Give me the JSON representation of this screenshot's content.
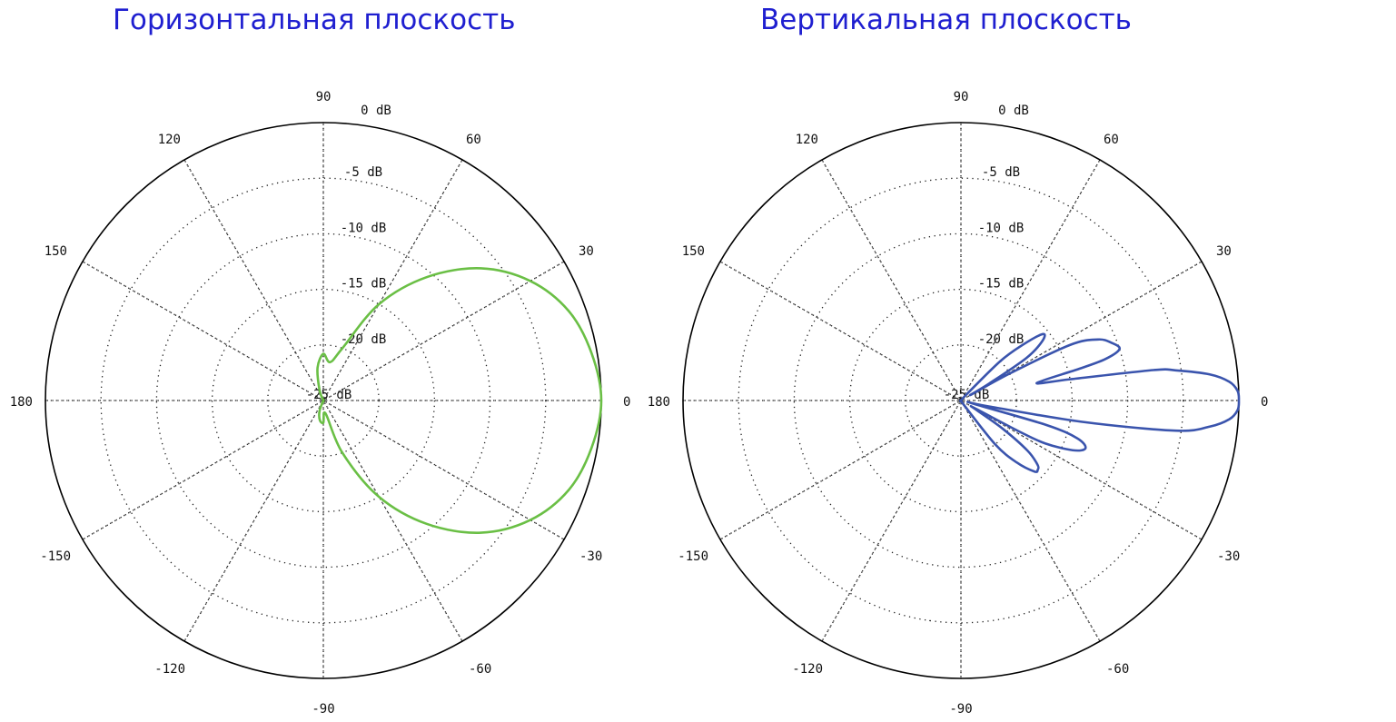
{
  "chart_data": [
    {
      "type": "polar-line",
      "title": "Горизонтальная плоскость",
      "angular_ticks": [
        "0",
        "30",
        "60",
        "90",
        "120",
        "150",
        "180",
        "-150",
        "-120",
        "-90",
        "-60",
        "-30"
      ],
      "radial_labels": [
        "0 dB",
        "-5 dB",
        "-10 dB",
        "-15 dB",
        "-20 dB",
        "-25 dB"
      ],
      "radial_range_db": [
        -25,
        0
      ],
      "grid": true,
      "series": [
        {
          "color": "#6abf45",
          "angles_deg": [
            0,
            10,
            20,
            30,
            40,
            50,
            60,
            70,
            80,
            90,
            100,
            110,
            120,
            130,
            140,
            150,
            160,
            170,
            180,
            -170,
            -160,
            -150,
            -140,
            -130,
            -120,
            -110,
            -100,
            -90,
            -80,
            -70,
            -60,
            -50,
            -40,
            -30,
            -20,
            -10
          ],
          "values_db": [
            0,
            -0.5,
            -1.5,
            -3.5,
            -6.5,
            -10.5,
            -15,
            -20,
            -21.5,
            -20.8,
            -22,
            -24,
            -25,
            -25,
            -25,
            -25,
            -25,
            -25,
            -25,
            -25,
            -25,
            -25,
            -25,
            -25,
            -25,
            -24,
            -23.2,
            -23,
            -23.8,
            -20,
            -15,
            -10.5,
            -6.5,
            -3.5,
            -1.5,
            -0.5
          ]
        }
      ]
    },
    {
      "type": "polar-line",
      "title": "Вертикальная плоскость",
      "angular_ticks": [
        "0",
        "30",
        "60",
        "90",
        "120",
        "150",
        "180",
        "-150",
        "-120",
        "-90",
        "-60",
        "-30"
      ],
      "radial_labels": [
        "0 dB",
        "-5 dB",
        "-10 dB",
        "-15 dB",
        "-20 dB",
        "-25 dB"
      ],
      "radial_range_db": [
        -25,
        0
      ],
      "grid": true,
      "series": [
        {
          "color": "#3a54ad",
          "angles_deg": [
            -8,
            -6,
            -4,
            -2,
            0,
            2,
            4,
            6,
            8,
            9,
            11,
            13,
            15,
            16,
            18,
            21,
            24,
            27,
            29,
            30,
            31,
            33,
            36,
            39,
            42,
            45,
            47,
            50,
            55,
            60,
            70,
            90,
            120,
            150,
            180,
            -150,
            -120,
            -90,
            -70,
            -60,
            -56,
            -52,
            -48,
            -44,
            -42,
            -40,
            -37,
            -34,
            -31,
            -29,
            -28,
            -27,
            -24,
            -21,
            -18,
            -16,
            -14,
            -12,
            -10
          ],
          "values_db": [
            -5.5,
            -2.5,
            -0.8,
            -0.1,
            0,
            -0.1,
            -0.8,
            -2.5,
            -5.5,
            -7.5,
            -15,
            -18,
            -14,
            -11.5,
            -10,
            -10.5,
            -11.5,
            -14,
            -20,
            -24,
            -22,
            -18,
            -16,
            -15.5,
            -17.5,
            -20,
            -24,
            -25,
            -25,
            -25,
            -25,
            -25,
            -25,
            -25,
            -25,
            -25,
            -25,
            -25,
            -25,
            -25,
            -24.5,
            -20,
            -17.5,
            -15.8,
            -15.7,
            -16,
            -17.5,
            -20.5,
            -23.5,
            -23.5,
            -19,
            -16.5,
            -14,
            -13,
            -14,
            -17,
            -24,
            -22.5,
            -14
          ]
        }
      ]
    }
  ]
}
